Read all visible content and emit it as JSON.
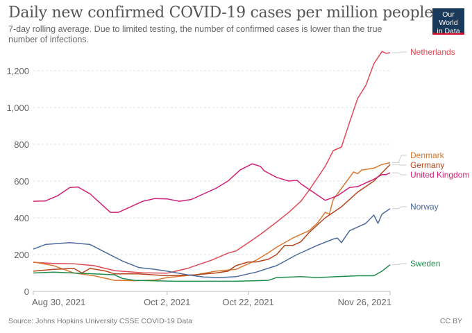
{
  "header": {
    "title": "Daily new confirmed COVID-19 cases per million people",
    "subtitle": "7-day rolling average. Due to limited testing, the number of confirmed cases is lower than the true number of infections.",
    "logo_line1": "Our World",
    "logo_line2": "in Data"
  },
  "footer": {
    "source": "Source: Johns Hopkins University CSSE COVID-19 Data",
    "license": "CC BY"
  },
  "chart_data": {
    "type": "line",
    "title": "Daily new confirmed COVID-19 cases per million people",
    "xlabel": "",
    "ylabel": "",
    "x_unit": "days since Aug 30, 2021",
    "xlim": [
      0,
      88
    ],
    "ylim": [
      0,
      1300
    ],
    "grid": true,
    "y_ticks": [
      0,
      200,
      400,
      600,
      800,
      1000,
      1200
    ],
    "y_tick_labels": [
      "0",
      "200",
      "400",
      "600",
      "800",
      "1,000",
      "1,200"
    ],
    "x_ticks": [
      {
        "day": 0,
        "label": "Aug 30, 2021"
      },
      {
        "day": 33,
        "label": "Oct 2, 2021"
      },
      {
        "day": 53,
        "label": "Oct 22, 2021"
      },
      {
        "day": 88,
        "label": "Nov 26, 2021"
      }
    ],
    "legend_placement": "right (end-of-line labels)",
    "series": [
      {
        "name": "Netherlands",
        "color": "#e04855",
        "points": [
          [
            0,
            158
          ],
          [
            5,
            152
          ],
          [
            10,
            150
          ],
          [
            15,
            140
          ],
          [
            20,
            113
          ],
          [
            27,
            101
          ],
          [
            33,
            99
          ],
          [
            38,
            125
          ],
          [
            44,
            170
          ],
          [
            48,
            208
          ],
          [
            50,
            220
          ],
          [
            53,
            264
          ],
          [
            56,
            310
          ],
          [
            60,
            377
          ],
          [
            63,
            430
          ],
          [
            66,
            490
          ],
          [
            68,
            550
          ],
          [
            70,
            615
          ],
          [
            72,
            680
          ],
          [
            74,
            766
          ],
          [
            76,
            785
          ],
          [
            78,
            920
          ],
          [
            80,
            1050
          ],
          [
            82,
            1120
          ],
          [
            84,
            1238
          ],
          [
            86,
            1305
          ],
          [
            87,
            1295
          ],
          [
            88,
            1298
          ]
        ]
      },
      {
        "name": "Denmark",
        "color": "#d9772e",
        "points": [
          [
            0,
            160
          ],
          [
            5,
            140
          ],
          [
            10,
            100
          ],
          [
            15,
            85
          ],
          [
            20,
            60
          ],
          [
            25,
            58
          ],
          [
            30,
            62
          ],
          [
            33,
            75
          ],
          [
            40,
            90
          ],
          [
            45,
            110
          ],
          [
            50,
            120
          ],
          [
            53,
            150
          ],
          [
            55,
            170
          ],
          [
            58,
            210
          ],
          [
            60,
            240
          ],
          [
            64,
            290
          ],
          [
            68,
            330
          ],
          [
            70,
            370
          ],
          [
            72,
            430
          ],
          [
            73,
            420
          ],
          [
            74,
            500
          ],
          [
            77,
            590
          ],
          [
            79,
            650
          ],
          [
            80,
            640
          ],
          [
            81,
            660
          ],
          [
            84,
            670
          ],
          [
            86,
            690
          ],
          [
            88,
            700
          ]
        ]
      },
      {
        "name": "Germany",
        "color": "#b3441c",
        "points": [
          [
            0,
            110
          ],
          [
            5,
            120
          ],
          [
            10,
            125
          ],
          [
            12,
            100
          ],
          [
            14,
            125
          ],
          [
            18,
            110
          ],
          [
            20,
            95
          ],
          [
            26,
            95
          ],
          [
            33,
            85
          ],
          [
            40,
            90
          ],
          [
            45,
            100
          ],
          [
            48,
            110
          ],
          [
            50,
            140
          ],
          [
            53,
            160
          ],
          [
            55,
            160
          ],
          [
            58,
            175
          ],
          [
            60,
            200
          ],
          [
            62,
            250
          ],
          [
            64,
            250
          ],
          [
            66,
            270
          ],
          [
            68,
            320
          ],
          [
            72,
            400
          ],
          [
            76,
            460
          ],
          [
            80,
            540
          ],
          [
            84,
            600
          ],
          [
            86,
            645
          ],
          [
            88,
            690
          ]
        ]
      },
      {
        "name": "United Kingdom",
        "color": "#cf1f74",
        "points": [
          [
            0,
            490
          ],
          [
            3,
            492
          ],
          [
            6,
            520
          ],
          [
            9,
            565
          ],
          [
            11,
            568
          ],
          [
            14,
            530
          ],
          [
            17,
            470
          ],
          [
            19,
            430
          ],
          [
            21,
            430
          ],
          [
            24,
            460
          ],
          [
            27,
            490
          ],
          [
            30,
            505
          ],
          [
            33,
            503
          ],
          [
            36,
            490
          ],
          [
            39,
            500
          ],
          [
            42,
            530
          ],
          [
            45,
            560
          ],
          [
            48,
            600
          ],
          [
            51,
            660
          ],
          [
            54,
            694
          ],
          [
            56,
            680
          ],
          [
            57,
            655
          ],
          [
            60,
            620
          ],
          [
            63,
            600
          ],
          [
            65,
            605
          ],
          [
            66,
            585
          ],
          [
            69,
            540
          ],
          [
            72,
            495
          ],
          [
            75,
            520
          ],
          [
            78,
            565
          ],
          [
            80,
            570
          ],
          [
            81,
            580
          ],
          [
            84,
            610
          ],
          [
            86,
            635
          ],
          [
            87,
            635
          ],
          [
            88,
            645
          ]
        ]
      },
      {
        "name": "Norway",
        "color": "#4c6a9c",
        "points": [
          [
            0,
            230
          ],
          [
            3,
            255
          ],
          [
            9,
            265
          ],
          [
            14,
            255
          ],
          [
            18,
            210
          ],
          [
            22,
            165
          ],
          [
            26,
            130
          ],
          [
            30,
            120
          ],
          [
            33,
            110
          ],
          [
            38,
            90
          ],
          [
            42,
            78
          ],
          [
            46,
            75
          ],
          [
            50,
            80
          ],
          [
            55,
            105
          ],
          [
            60,
            140
          ],
          [
            65,
            200
          ],
          [
            70,
            250
          ],
          [
            74,
            285
          ],
          [
            75,
            290
          ],
          [
            76,
            265
          ],
          [
            78,
            330
          ],
          [
            82,
            370
          ],
          [
            84,
            415
          ],
          [
            85,
            370
          ],
          [
            86,
            420
          ],
          [
            88,
            450
          ]
        ]
      },
      {
        "name": "Sweden",
        "color": "#1e8c4c",
        "points": [
          [
            0,
            100
          ],
          [
            5,
            105
          ],
          [
            10,
            100
          ],
          [
            15,
            95
          ],
          [
            20,
            90
          ],
          [
            22,
            70
          ],
          [
            25,
            60
          ],
          [
            35,
            55
          ],
          [
            50,
            55
          ],
          [
            55,
            58
          ],
          [
            58,
            60
          ],
          [
            60,
            75
          ],
          [
            66,
            80
          ],
          [
            70,
            75
          ],
          [
            75,
            80
          ],
          [
            80,
            85
          ],
          [
            84,
            85
          ],
          [
            86,
            110
          ],
          [
            88,
            145
          ]
        ]
      }
    ]
  }
}
